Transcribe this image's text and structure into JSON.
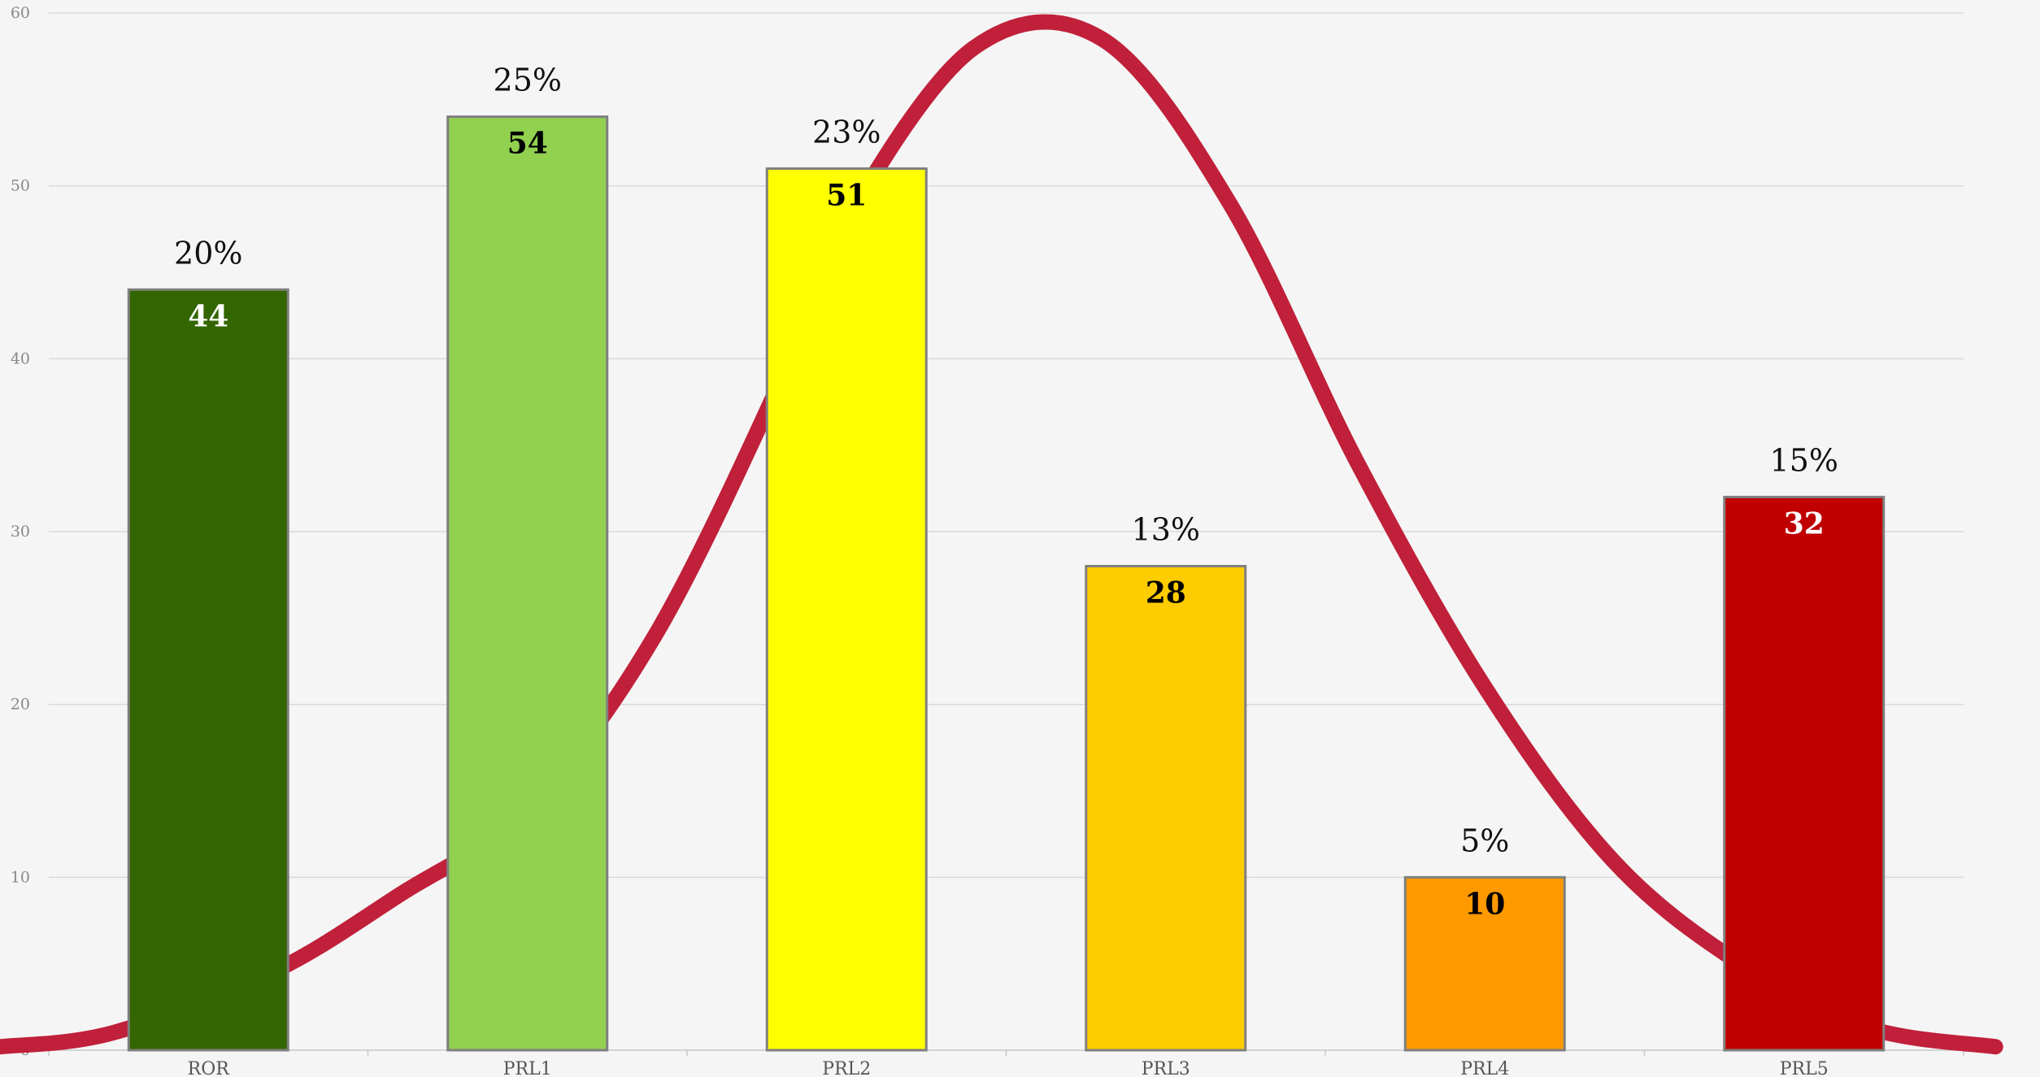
{
  "chart_data": {
    "type": "bar",
    "categories": [
      "ROR",
      "PRL1",
      "PRL2",
      "PRL3",
      "PRL4",
      "PRL5"
    ],
    "values": [
      44,
      54,
      51,
      28,
      10,
      32
    ],
    "percent_labels": [
      "20%",
      "25%",
      "23%",
      "13%",
      "5%",
      "15%"
    ],
    "bar_colors": [
      "#336600",
      "#92d050",
      "#ffff00",
      "#ffcc00",
      "#ff9900",
      "#c00000"
    ],
    "value_label_colors": [
      "#ffffff",
      "#000000",
      "#000000",
      "#000000",
      "#000000",
      "#ffffff"
    ],
    "ylim": [
      0,
      60
    ],
    "yticks": [
      0,
      10,
      20,
      30,
      40,
      50,
      60
    ],
    "grid": true,
    "overlay_curve": {
      "type": "line",
      "style": "smooth bell curve",
      "color": "#c0203a",
      "x": [
        -0.65,
        -0.3,
        0.2,
        0.6,
        1.0,
        1.4,
        1.8,
        2.0,
        2.4,
        2.8,
        3.2,
        3.6,
        4.0,
        4.4,
        4.8,
        5.2,
        5.6
      ],
      "y": [
        0.2,
        1.0,
        4.5,
        9.0,
        14.0,
        24.0,
        39.0,
        48.0,
        58.0,
        58.5,
        49.0,
        34.0,
        21.0,
        11.0,
        5.0,
        1.3,
        0.2
      ]
    }
  }
}
